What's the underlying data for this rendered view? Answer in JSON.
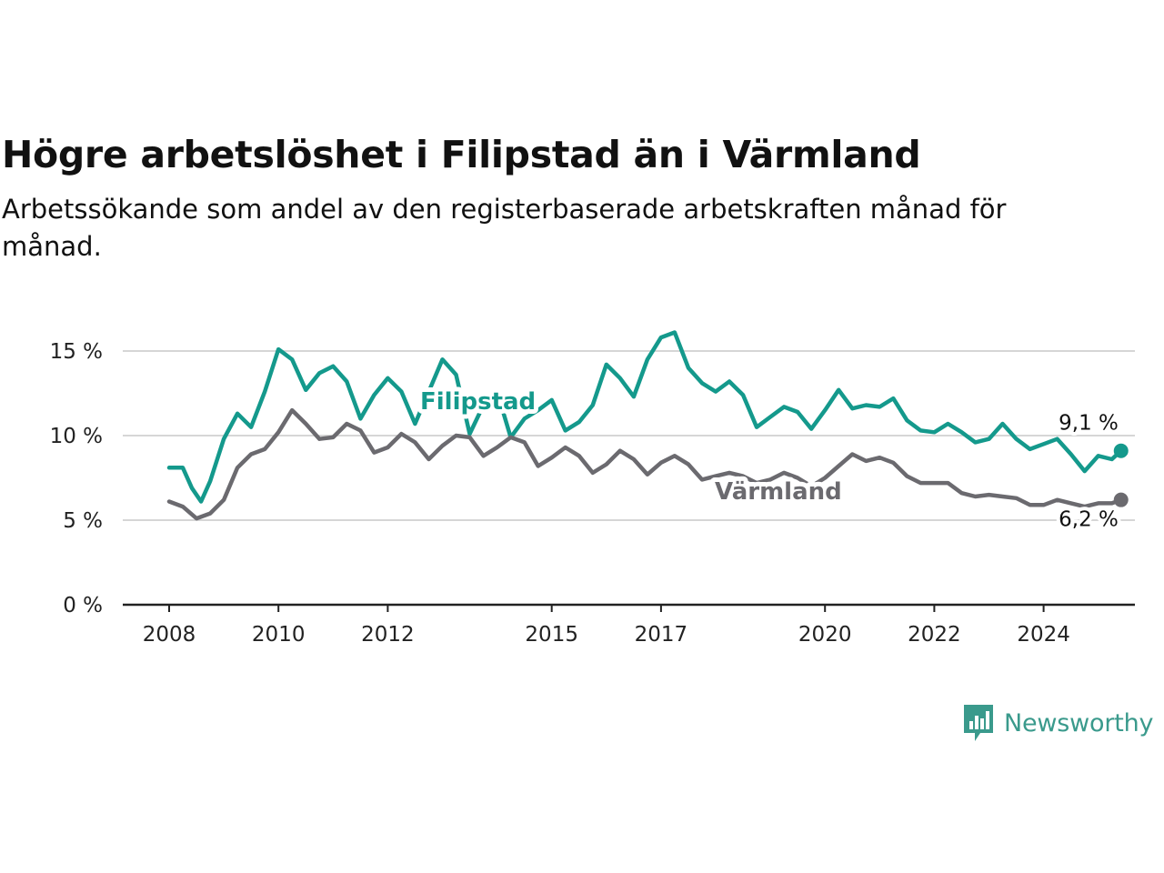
{
  "title": "Högre arbetslöshet i Filipstad än i Värmland",
  "subtitle": "Arbetssökande som andel av den registerbaserade arbetskraften månad för månad.",
  "brand": {
    "name": "Newsworthy",
    "icon": "newsworthy-logo-icon",
    "color": "#3a9a8c"
  },
  "chart_data": {
    "type": "line",
    "x_axis": {
      "ticks": [
        "2008",
        "2010",
        "2012",
        "2015",
        "2017",
        "2020",
        "2022",
        "2024"
      ],
      "range": [
        "2008-01",
        "2026-06"
      ]
    },
    "y_axis": {
      "ticks": [
        "0 %",
        "5 %",
        "10 %",
        "15 %"
      ],
      "ylim": [
        0,
        17
      ],
      "grid": true
    },
    "series": [
      {
        "name": "Filipstad",
        "color": "#14998c",
        "end_label": "9,1 %",
        "points": [
          [
            "2008-01",
            8.1
          ],
          [
            "2008-04",
            8.1
          ],
          [
            "2008-06",
            6.9
          ],
          [
            "2008-08",
            6.1
          ],
          [
            "2008-10",
            7.3
          ],
          [
            "2009-01",
            9.8
          ],
          [
            "2009-04",
            11.3
          ],
          [
            "2009-07",
            10.5
          ],
          [
            "2009-10",
            12.6
          ],
          [
            "2010-01",
            15.1
          ],
          [
            "2010-04",
            14.5
          ],
          [
            "2010-07",
            12.7
          ],
          [
            "2010-10",
            13.7
          ],
          [
            "2011-01",
            14.1
          ],
          [
            "2011-04",
            13.2
          ],
          [
            "2011-07",
            11.0
          ],
          [
            "2011-10",
            12.4
          ],
          [
            "2012-01",
            13.4
          ],
          [
            "2012-04",
            12.6
          ],
          [
            "2012-07",
            10.7
          ],
          [
            "2012-10",
            12.6
          ],
          [
            "2013-01",
            14.5
          ],
          [
            "2013-04",
            13.6
          ],
          [
            "2013-07",
            10.1
          ],
          [
            "2013-10",
            11.8
          ],
          [
            "2014-01",
            12.6
          ],
          [
            "2014-04",
            9.9
          ],
          [
            "2014-07",
            11.0
          ],
          [
            "2014-10",
            11.5
          ],
          [
            "2015-01",
            12.1
          ],
          [
            "2015-04",
            10.3
          ],
          [
            "2015-07",
            10.8
          ],
          [
            "2015-10",
            11.8
          ],
          [
            "2016-01",
            14.2
          ],
          [
            "2016-04",
            13.4
          ],
          [
            "2016-07",
            12.3
          ],
          [
            "2016-10",
            14.5
          ],
          [
            "2017-01",
            15.8
          ],
          [
            "2017-04",
            16.1
          ],
          [
            "2017-07",
            14.0
          ],
          [
            "2017-10",
            13.1
          ],
          [
            "2018-01",
            12.6
          ],
          [
            "2018-04",
            13.2
          ],
          [
            "2018-07",
            12.4
          ],
          [
            "2018-10",
            10.5
          ],
          [
            "2019-01",
            11.1
          ],
          [
            "2019-04",
            11.7
          ],
          [
            "2019-07",
            11.4
          ],
          [
            "2019-10",
            10.4
          ],
          [
            "2020-01",
            11.5
          ],
          [
            "2020-04",
            12.7
          ],
          [
            "2020-07",
            11.6
          ],
          [
            "2020-10",
            11.8
          ],
          [
            "2021-01",
            11.7
          ],
          [
            "2021-04",
            12.2
          ],
          [
            "2021-07",
            10.9
          ],
          [
            "2021-10",
            10.3
          ],
          [
            "2022-01",
            10.2
          ],
          [
            "2022-04",
            10.7
          ],
          [
            "2022-07",
            10.2
          ],
          [
            "2022-10",
            9.6
          ],
          [
            "2023-01",
            9.8
          ],
          [
            "2023-04",
            10.7
          ],
          [
            "2023-07",
            9.8
          ],
          [
            "2023-10",
            9.2
          ],
          [
            "2024-01",
            9.5
          ],
          [
            "2024-04",
            9.8
          ],
          [
            "2024-07",
            8.9
          ],
          [
            "2024-10",
            7.9
          ],
          [
            "2025-01",
            8.8
          ],
          [
            "2025-04",
            8.6
          ],
          [
            "2025-06",
            9.1
          ]
        ]
      },
      {
        "name": "Värmland",
        "color": "#6b6a6f",
        "end_label": "6,2 %",
        "points": [
          [
            "2008-01",
            6.1
          ],
          [
            "2008-04",
            5.8
          ],
          [
            "2008-07",
            5.1
          ],
          [
            "2008-10",
            5.4
          ],
          [
            "2009-01",
            6.2
          ],
          [
            "2009-04",
            8.1
          ],
          [
            "2009-07",
            8.9
          ],
          [
            "2009-10",
            9.2
          ],
          [
            "2010-01",
            10.2
          ],
          [
            "2010-04",
            11.5
          ],
          [
            "2010-07",
            10.7
          ],
          [
            "2010-10",
            9.8
          ],
          [
            "2011-01",
            9.9
          ],
          [
            "2011-04",
            10.7
          ],
          [
            "2011-07",
            10.3
          ],
          [
            "2011-10",
            9.0
          ],
          [
            "2012-01",
            9.3
          ],
          [
            "2012-04",
            10.1
          ],
          [
            "2012-07",
            9.6
          ],
          [
            "2012-10",
            8.6
          ],
          [
            "2013-01",
            9.4
          ],
          [
            "2013-04",
            10.0
          ],
          [
            "2013-07",
            9.9
          ],
          [
            "2013-10",
            8.8
          ],
          [
            "2014-01",
            9.3
          ],
          [
            "2014-04",
            9.9
          ],
          [
            "2014-07",
            9.6
          ],
          [
            "2014-10",
            8.2
          ],
          [
            "2015-01",
            8.7
          ],
          [
            "2015-04",
            9.3
          ],
          [
            "2015-07",
            8.8
          ],
          [
            "2015-10",
            7.8
          ],
          [
            "2016-01",
            8.3
          ],
          [
            "2016-04",
            9.1
          ],
          [
            "2016-07",
            8.6
          ],
          [
            "2016-10",
            7.7
          ],
          [
            "2017-01",
            8.4
          ],
          [
            "2017-04",
            8.8
          ],
          [
            "2017-07",
            8.3
          ],
          [
            "2017-10",
            7.4
          ],
          [
            "2018-01",
            7.6
          ],
          [
            "2018-04",
            7.8
          ],
          [
            "2018-07",
            7.6
          ],
          [
            "2018-10",
            7.2
          ],
          [
            "2019-01",
            7.4
          ],
          [
            "2019-04",
            7.8
          ],
          [
            "2019-07",
            7.5
          ],
          [
            "2019-10",
            7.0
          ],
          [
            "2020-01",
            7.5
          ],
          [
            "2020-04",
            8.2
          ],
          [
            "2020-07",
            8.9
          ],
          [
            "2020-10",
            8.5
          ],
          [
            "2021-01",
            8.7
          ],
          [
            "2021-04",
            8.4
          ],
          [
            "2021-07",
            7.6
          ],
          [
            "2021-10",
            7.2
          ],
          [
            "2022-01",
            7.2
          ],
          [
            "2022-04",
            7.2
          ],
          [
            "2022-07",
            6.6
          ],
          [
            "2022-10",
            6.4
          ],
          [
            "2023-01",
            6.5
          ],
          [
            "2023-04",
            6.4
          ],
          [
            "2023-07",
            6.3
          ],
          [
            "2023-10",
            5.9
          ],
          [
            "2024-01",
            5.9
          ],
          [
            "2024-04",
            6.2
          ],
          [
            "2024-07",
            6.0
          ],
          [
            "2024-10",
            5.8
          ],
          [
            "2025-01",
            6.0
          ],
          [
            "2025-04",
            6.0
          ],
          [
            "2025-06",
            6.2
          ]
        ]
      }
    ]
  }
}
